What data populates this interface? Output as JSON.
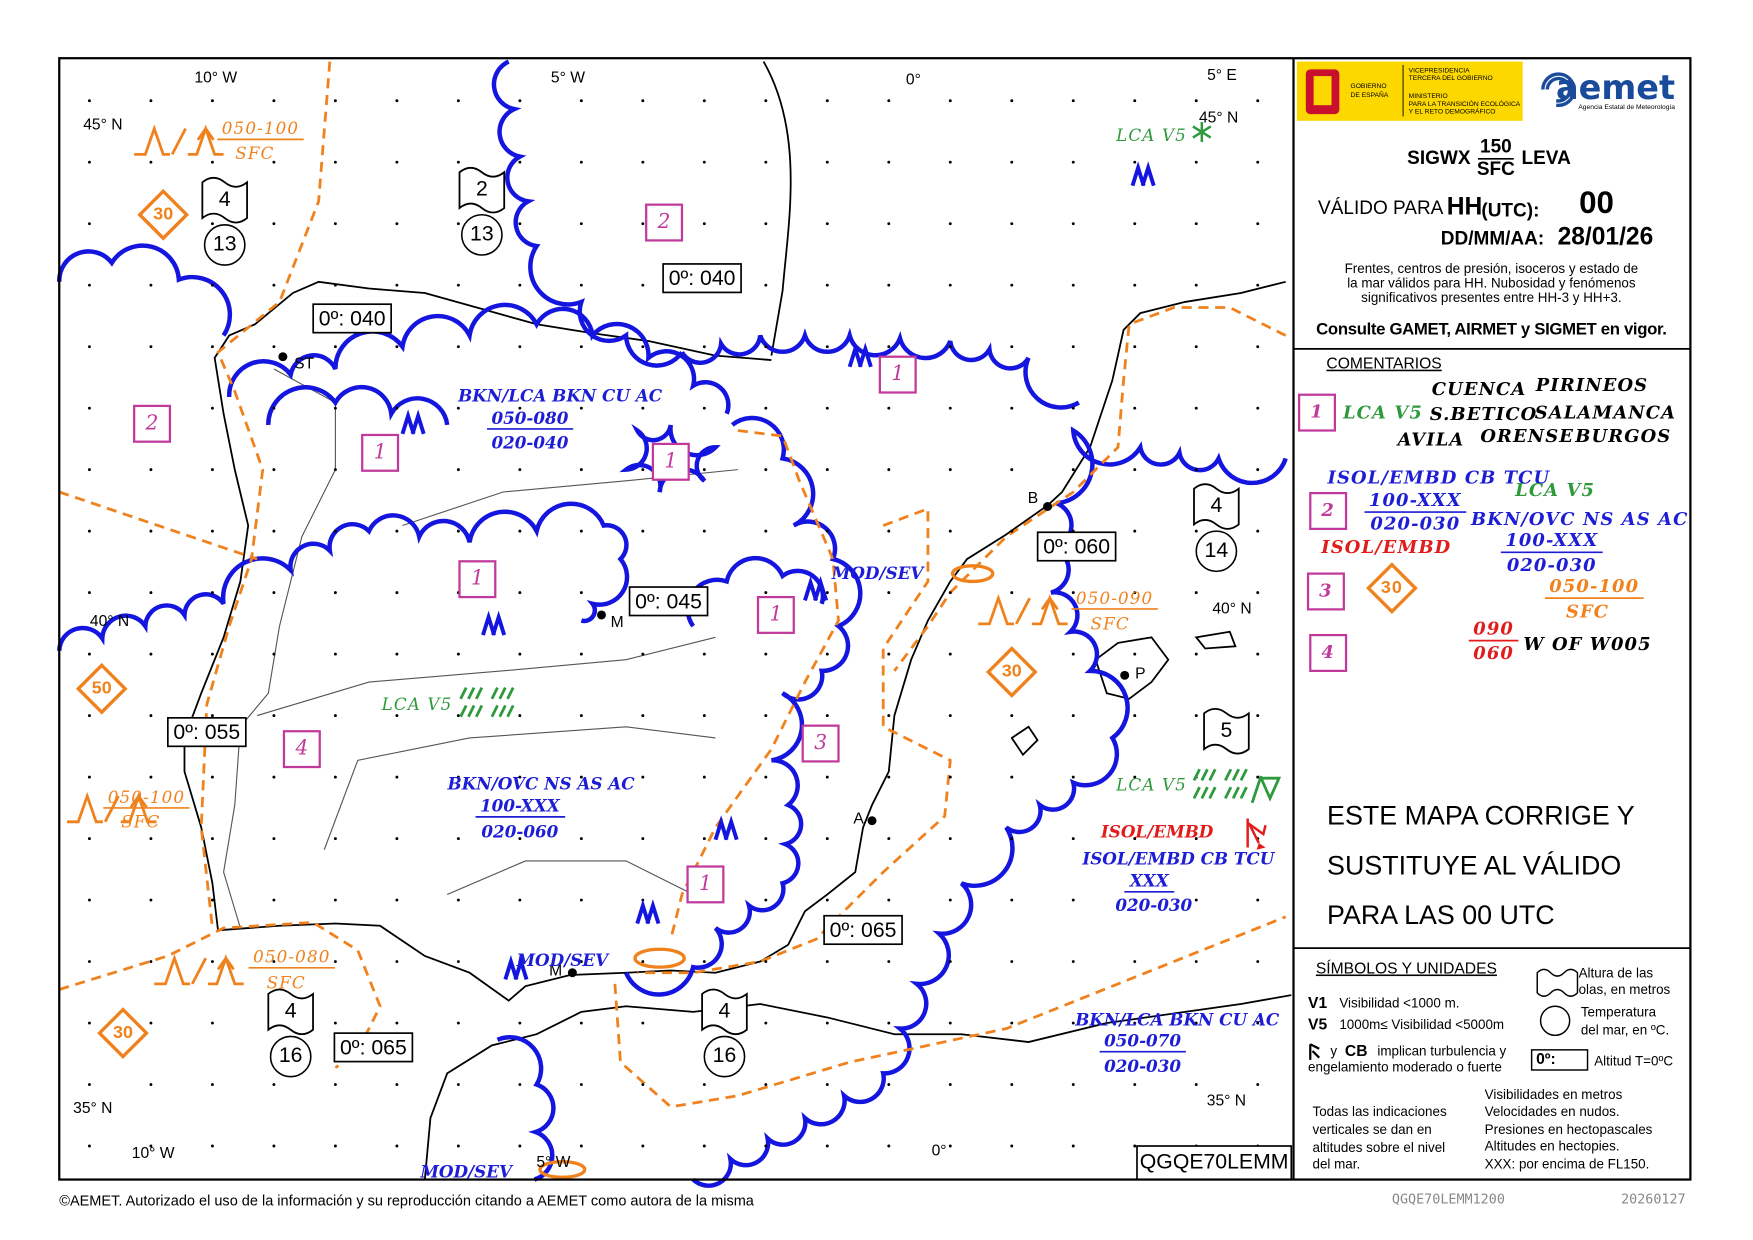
{
  "header": {
    "ministry": [
      "VICEPRESIDENCIA",
      "TERCERA DEL GOBIERNO",
      "MINISTERIO",
      "PARA LA TRANSICIÓN ECOLÓGICA",
      "Y EL RETO DEMOGRÁFICO"
    ],
    "gobierno": [
      "GOBIERNO",
      "DE ESPAÑA"
    ],
    "agency": "aemet",
    "agency_full": "Agencia Estatal de Meteorología",
    "product": "SIGWX",
    "fl_top": "150",
    "fl_bottom": "SFC",
    "region": "LEVA",
    "valid_label": "VÁLIDO PARA",
    "hh": "HH",
    "utc": "(UTC):",
    "hour": "00",
    "date_label": "DD/MM/AA:",
    "date": "28/01/26",
    "note": [
      "Frentes, centros de presión, isoceros y estado de",
      "la mar válidos para HH. Nubosidad y fenómenos",
      "significativos presentes entre HH-3 y HH+3."
    ],
    "consult": "Consulte GAMET, AIRMET y SIGMET en vigor."
  },
  "comments": {
    "title": "COMENTARIOS",
    "labels": [
      "1",
      "LCA V5",
      "CUENCA",
      "PIRINEOS",
      "S.BETICO",
      "SALAMANCA",
      "AVILA",
      "ORENSE",
      "BURGOS",
      "2",
      "ISOL/EMBD CB TCU",
      "100-XXX",
      "020-030",
      "LCA V5",
      "BKN/OVC NS AS AC",
      "100-XXX",
      "020-030",
      "ISOL/EMBD",
      "3",
      "30",
      "050-100",
      "SFC",
      "4",
      "090",
      "060",
      "W OF W005"
    ]
  },
  "correction": [
    "ESTE MAPA CORRIGE Y",
    "SUSTITUYE AL VÁLIDO",
    "PARA LAS 00 UTC"
  ],
  "symbols": {
    "title": "SÍMBOLOS Y UNIDADES",
    "wave_height": [
      "Altura de las",
      "olas, en metros"
    ],
    "v1": [
      "V1",
      "Visibilidad <1000 m."
    ],
    "v5": [
      "V5",
      "1000m≤ Visibilidad <5000m"
    ],
    "sst": [
      "Temperatura",
      "del mar, en ºC."
    ],
    "cb": [
      "y",
      "CB",
      "implican turbulencia y",
      "engelamiento moderado o fuerte"
    ],
    "fz": [
      "0º:",
      "Altitud T=0ºC"
    ],
    "notes_left": [
      "Todas las indicaciones",
      "verticales se dan en",
      "altitudes sobre el nivel",
      "del mar."
    ],
    "notes_right": [
      "Visibilidades en metros",
      "Velocidades en nudos.",
      "Presiones en hectopascales",
      "Altitudes en hectopies.",
      "XXX: por encima de FL150."
    ]
  },
  "map": {
    "graticule": [
      "10° W",
      "5° W",
      "0°",
      "5° E",
      "45° N",
      "45° N",
      "40° N",
      "40° N",
      "35° N",
      "35° N",
      "10° W",
      "5° W",
      "0°"
    ],
    "places": [
      "ST",
      "B",
      "M",
      "P",
      "A",
      "M"
    ],
    "freezing_levels": [
      "0º: 040",
      "0º: 040",
      "0º: 045",
      "0º: 060",
      "0º: 055",
      "0º: 065",
      "0º: 065"
    ],
    "areas": [
      "2",
      "2",
      "1",
      "1",
      "1",
      "1",
      "1",
      "4",
      "3",
      "1"
    ],
    "sea_state": [
      [
        "4",
        "13"
      ],
      [
        "2",
        "13"
      ],
      [
        "4",
        "14"
      ],
      [
        "5"
      ],
      [
        "4",
        "16"
      ],
      [
        "4",
        "16"
      ]
    ],
    "diamonds": [
      "30",
      "50",
      "30",
      "30"
    ],
    "orange": [
      "050-100",
      "SFC",
      "050-090",
      "SFC",
      "050-100",
      "SFC",
      "050-080",
      "SFC"
    ],
    "green": [
      "LCA V5",
      "LCA V5",
      "LCA V5"
    ],
    "blue": [
      "BKN/LCA BKN CU AC",
      "050-080",
      "020-040",
      "BKN/OVC NS AS AC",
      "100-XXX",
      "020-060",
      "BKN/LCA BKN CU AC",
      "050-070",
      "020-030",
      "ISOL/EMBD CB TCU",
      "XXX",
      "020-030"
    ],
    "red": [
      "ISOL/EMBD"
    ],
    "turbulence": [
      "MOD/SEV",
      "MOD/SEV",
      "MOD/SEV"
    ],
    "station": "QGQE70LEMM"
  },
  "footer": {
    "copyright": "©AEMET. Autorizado el uso de la información y su reproducción citando a AEMET como autora de la misma",
    "id": "QGQE70LEMM1200",
    "date": "20260127"
  }
}
